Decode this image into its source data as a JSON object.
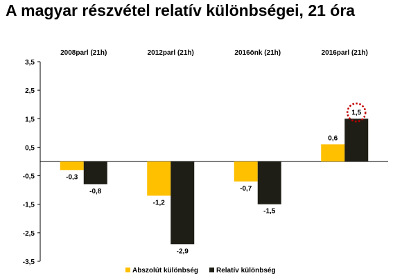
{
  "title": "A magyar részvétel relatív különbségei, 21 óra",
  "chart_data": {
    "type": "bar",
    "categories": [
      "2008parl (21h)",
      "2012parl (21h)",
      "2016önk (21h)",
      "2016parl (21h)"
    ],
    "series": [
      {
        "name": "Abszolút különbség",
        "color": "#FFC000",
        "values": [
          -0.3,
          -1.2,
          -0.7,
          0.6
        ],
        "labels": [
          "-0,3",
          "-1,2",
          "-0,7",
          "0,6"
        ]
      },
      {
        "name": "Relatív különbség",
        "color": "#1F1E16",
        "values": [
          -0.8,
          -2.9,
          -1.5,
          1.5
        ],
        "labels": [
          "-0,8",
          "-2,9",
          "-1,5",
          "1,5"
        ]
      }
    ],
    "ylim": [
      -3.5,
      3.5
    ],
    "yticks": [
      3.5,
      2.5,
      1.5,
      0.5,
      -0.5,
      -1.5,
      -2.5,
      -3.5
    ],
    "ytick_labels": [
      "3,5",
      "2,5",
      "1,5",
      "0,5",
      "-0,5",
      "-1,5",
      "-2,5",
      "-3,5"
    ],
    "highlight": {
      "series": 1,
      "category": 3,
      "style": "dotted-circle",
      "color": "#C00000"
    },
    "legend": "bottom",
    "grid": false
  }
}
